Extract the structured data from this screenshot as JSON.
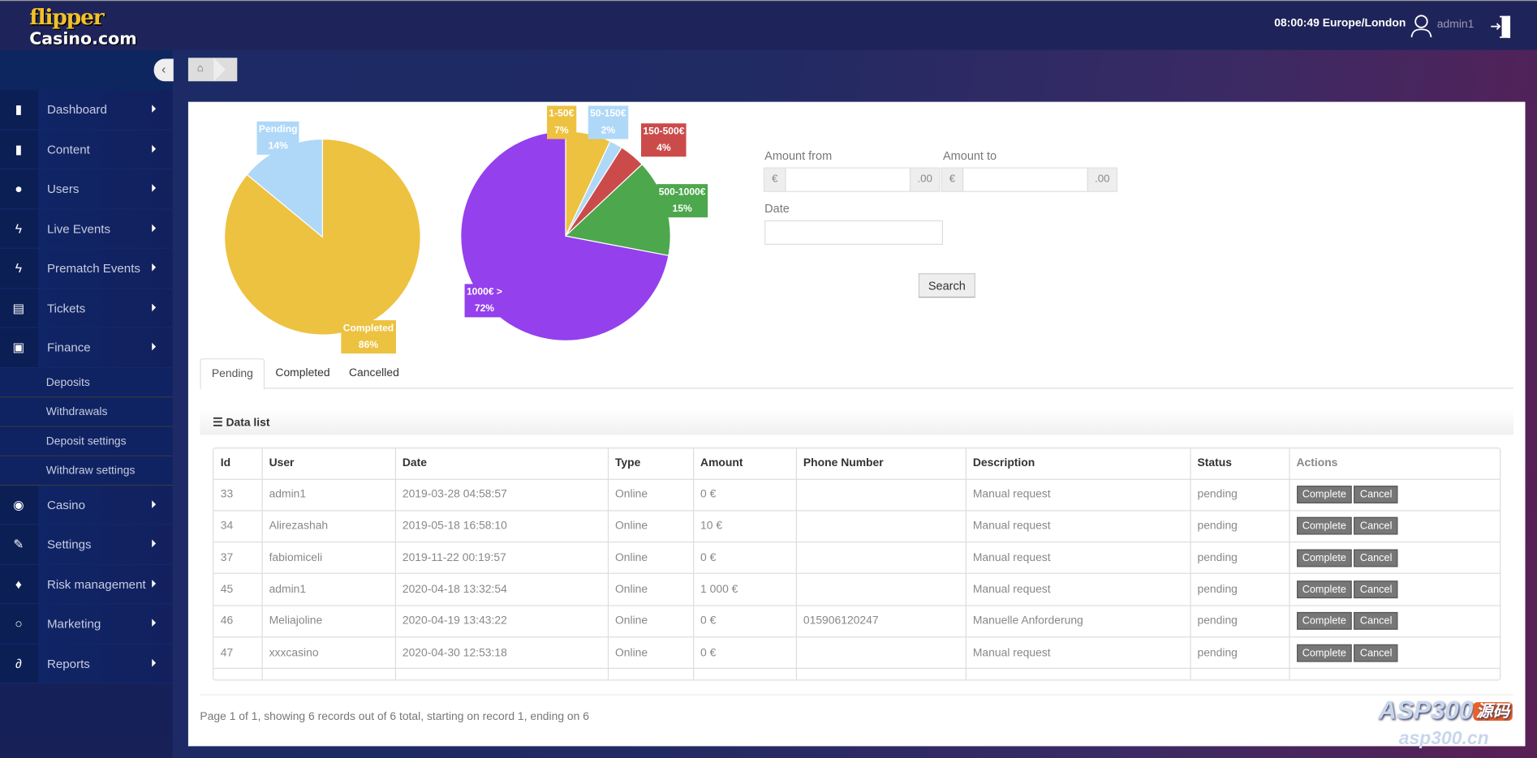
{
  "header": {
    "logo_line1": "flipper",
    "logo_line2": "Casino.com",
    "clock": "08:00:49 Europe/London",
    "username": "admin1"
  },
  "sidebar": {
    "items": [
      {
        "label": "Dashboard",
        "icon": "book-icon"
      },
      {
        "label": "Content",
        "icon": "book-icon"
      },
      {
        "label": "Users",
        "icon": "user-icon"
      },
      {
        "label": "Live Events",
        "icon": "bolt-icon"
      },
      {
        "label": "Prematch Events",
        "icon": "bolt-icon"
      },
      {
        "label": "Tickets",
        "icon": "file-icon"
      },
      {
        "label": "Finance",
        "icon": "money-icon"
      }
    ],
    "finance_sub": [
      "Deposits",
      "Withdrawals",
      "Deposit settings",
      "Withdraw settings"
    ],
    "items2": [
      {
        "label": "Casino",
        "icon": "play-circle-icon"
      },
      {
        "label": "Settings",
        "icon": "wrench-icon"
      },
      {
        "label": "Risk management",
        "icon": "fire-icon"
      },
      {
        "label": "Marketing",
        "icon": "comment-icon"
      },
      {
        "label": "Reports",
        "icon": "paperclip-icon"
      }
    ]
  },
  "chart_data": [
    {
      "type": "pie",
      "slices": [
        {
          "label": "Completed",
          "value": 86,
          "display": "86%",
          "color": "#edc240"
        },
        {
          "label": "Pending",
          "value": 14,
          "display": "14%",
          "color": "#afd8f8"
        }
      ]
    },
    {
      "type": "pie",
      "slices": [
        {
          "label": "1-50€",
          "value": 7,
          "display": "7%",
          "color": "#edc240"
        },
        {
          "label": "50-150€",
          "value": 2,
          "display": "2%",
          "color": "#afd8f8"
        },
        {
          "label": "150-500€",
          "value": 4,
          "display": "4%",
          "color": "#cb4b4b"
        },
        {
          "label": "500-1000€",
          "value": 15,
          "display": "15%",
          "color": "#4da74d"
        },
        {
          "label": "1000€ >",
          "value": 72,
          "display": "72%",
          "color": "#9440ed"
        }
      ]
    }
  ],
  "filters": {
    "amount_from": "Amount from",
    "amount_to": "Amount to",
    "currency": "€",
    "decimals": ".00",
    "date": "Date",
    "search": "Search"
  },
  "tabs": [
    "Pending",
    "Completed",
    "Cancelled"
  ],
  "datalist": "Data list",
  "table": {
    "columns": [
      "Id",
      "User",
      "Date",
      "Type",
      "Amount",
      "Phone Number",
      "Description",
      "Status",
      "Actions"
    ],
    "rows": [
      [
        "33",
        "admin1",
        "2019-03-28 04:58:57",
        "Online",
        "0 €",
        "",
        "Manual request",
        "pending"
      ],
      [
        "34",
        "Alirezashah",
        "2019-05-18 16:58:10",
        "Online",
        "10 €",
        "",
        "Manual request",
        "pending"
      ],
      [
        "37",
        "fabiomiceli",
        "2019-11-22 00:19:57",
        "Online",
        "0 €",
        "",
        "Manual request",
        "pending"
      ],
      [
        "45",
        "admin1",
        "2020-04-18 13:32:54",
        "Online",
        "1 000 €",
        "",
        "Manual request",
        "pending"
      ],
      [
        "46",
        "Meliajoline",
        "2020-04-19 13:43:22",
        "Online",
        "0 €",
        "015906120247",
        "Manuelle Anforderung",
        "pending"
      ],
      [
        "47",
        "xxxcasino",
        "2020-04-30 12:53:18",
        "Online",
        "0 €",
        "",
        "Manual request",
        "pending"
      ]
    ],
    "complete": "Complete",
    "cancel": "Cancel"
  },
  "pagination": "Page 1 of 1, showing 6 records out of 6 total, starting on record 1, ending on 6",
  "watermark": {
    "text": "ASP300",
    "cn": "源码",
    "url": "asp300.cn"
  }
}
